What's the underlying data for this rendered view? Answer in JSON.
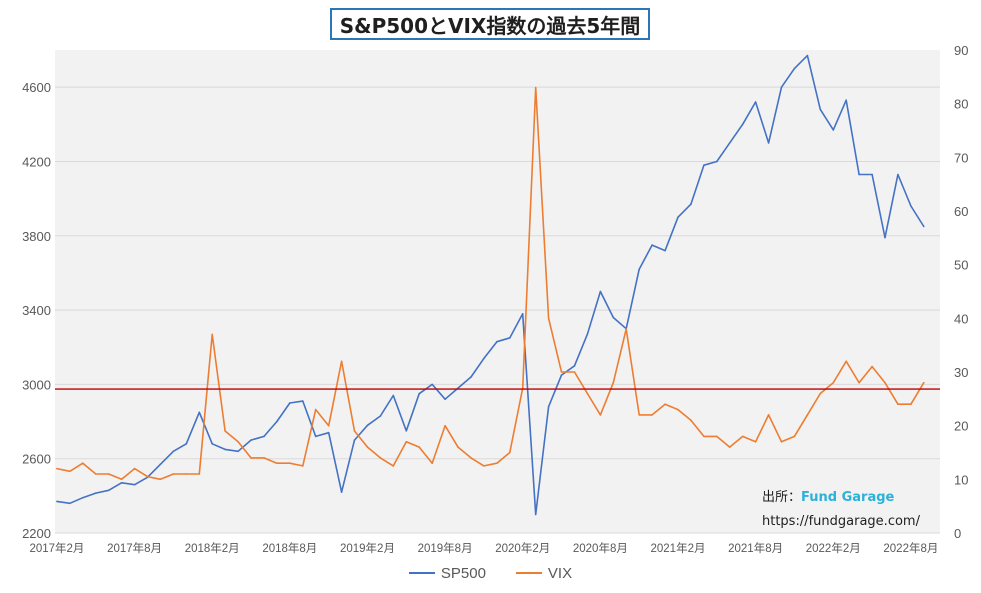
{
  "chart_data": {
    "type": "line",
    "title": "S&P500とVIX指数の過去5年間",
    "x_tick_labels": [
      "2017年2月",
      "2017年8月",
      "2018年2月",
      "2018年8月",
      "2019年2月",
      "2019年8月",
      "2020年2月",
      "2020年8月",
      "2021年2月",
      "2021年8月",
      "2022年2月",
      "2022年8月"
    ],
    "y_left": {
      "ticks": [
        2200,
        2600,
        3000,
        3400,
        3800,
        4200,
        4600
      ],
      "ylim": [
        2200,
        4800
      ]
    },
    "y_right": {
      "ticks": [
        0,
        10,
        20,
        30,
        40,
        50,
        60,
        70,
        80,
        90
      ],
      "ylim": [
        0,
        90
      ]
    },
    "reference_line": {
      "value": 2975,
      "axis": "left",
      "color": "#c00000"
    },
    "grid": true,
    "legend_position": "bottom",
    "colors": {
      "SP500": "#4472c4",
      "VIX": "#ed7d31",
      "background": "#f2f2f2",
      "gridline": "#d9d9d9"
    },
    "series": [
      {
        "name": "SP500",
        "axis": "left",
        "x": [
          "2017-02",
          "2017-03",
          "2017-04",
          "2017-05",
          "2017-06",
          "2017-07",
          "2017-08",
          "2017-09",
          "2017-10",
          "2017-11",
          "2017-12",
          "2018-01",
          "2018-02",
          "2018-03",
          "2018-04",
          "2018-05",
          "2018-06",
          "2018-07",
          "2018-08",
          "2018-09",
          "2018-10",
          "2018-11",
          "2018-12",
          "2019-01",
          "2019-02",
          "2019-03",
          "2019-04",
          "2019-05",
          "2019-06",
          "2019-07",
          "2019-08",
          "2019-09",
          "2019-10",
          "2019-11",
          "2019-12",
          "2020-01",
          "2020-02",
          "2020-03",
          "2020-04",
          "2020-05",
          "2020-06",
          "2020-07",
          "2020-08",
          "2020-09",
          "2020-10",
          "2020-11",
          "2020-12",
          "2021-01",
          "2021-02",
          "2021-03",
          "2021-04",
          "2021-05",
          "2021-06",
          "2021-07",
          "2021-08",
          "2021-09",
          "2021-10",
          "2021-11",
          "2021-12",
          "2022-01",
          "2022-02",
          "2022-03",
          "2022-04",
          "2022-05",
          "2022-06",
          "2022-07",
          "2022-08",
          "2022-09"
        ],
        "values": [
          2370,
          2360,
          2390,
          2415,
          2430,
          2470,
          2460,
          2500,
          2570,
          2640,
          2680,
          2850,
          2680,
          2650,
          2640,
          2700,
          2720,
          2800,
          2900,
          2910,
          2720,
          2740,
          2420,
          2700,
          2780,
          2830,
          2940,
          2750,
          2950,
          3000,
          2920,
          2980,
          3040,
          3140,
          3230,
          3250,
          3380,
          2300,
          2880,
          3050,
          3100,
          3270,
          3500,
          3360,
          3300,
          3620,
          3750,
          3720,
          3900,
          3970,
          4180,
          4200,
          4300,
          4400,
          4520,
          4300,
          4600,
          4700,
          4770,
          4480,
          4370,
          4530,
          4130,
          4130,
          3790,
          4130,
          3960,
          3850
        ]
      },
      {
        "name": "VIX",
        "axis": "right",
        "x": [
          "2017-02",
          "2017-03",
          "2017-04",
          "2017-05",
          "2017-06",
          "2017-07",
          "2017-08",
          "2017-09",
          "2017-10",
          "2017-11",
          "2017-12",
          "2018-01",
          "2018-02",
          "2018-03",
          "2018-04",
          "2018-05",
          "2018-06",
          "2018-07",
          "2018-08",
          "2018-09",
          "2018-10",
          "2018-11",
          "2018-12",
          "2019-01",
          "2019-02",
          "2019-03",
          "2019-04",
          "2019-05",
          "2019-06",
          "2019-07",
          "2019-08",
          "2019-09",
          "2019-10",
          "2019-11",
          "2019-12",
          "2020-01",
          "2020-02",
          "2020-03",
          "2020-04",
          "2020-05",
          "2020-06",
          "2020-07",
          "2020-08",
          "2020-09",
          "2020-10",
          "2020-11",
          "2020-12",
          "2021-01",
          "2021-02",
          "2021-03",
          "2021-04",
          "2021-05",
          "2021-06",
          "2021-07",
          "2021-08",
          "2021-09",
          "2021-10",
          "2021-11",
          "2021-12",
          "2022-01",
          "2022-02",
          "2022-03",
          "2022-04",
          "2022-05",
          "2022-06",
          "2022-07",
          "2022-08",
          "2022-09"
        ],
        "values": [
          12,
          11.5,
          13,
          11,
          11,
          10,
          12,
          10.5,
          10,
          11,
          11,
          11,
          37,
          19,
          17,
          14,
          14,
          13,
          13,
          12.5,
          23,
          20,
          32,
          19,
          16,
          14,
          12.5,
          17,
          16,
          13,
          20,
          16,
          14,
          12.5,
          13,
          15,
          27,
          83,
          40,
          30,
          30,
          26,
          22,
          28,
          38,
          22,
          22,
          24,
          23,
          21,
          18,
          18,
          16,
          18,
          17,
          22,
          17,
          18,
          22,
          26,
          28,
          32,
          28,
          31,
          28,
          24,
          24,
          28
        ]
      }
    ]
  },
  "source": {
    "label": "出所：",
    "name": "Fund Garage",
    "url": "https://fundgarage.com/"
  }
}
